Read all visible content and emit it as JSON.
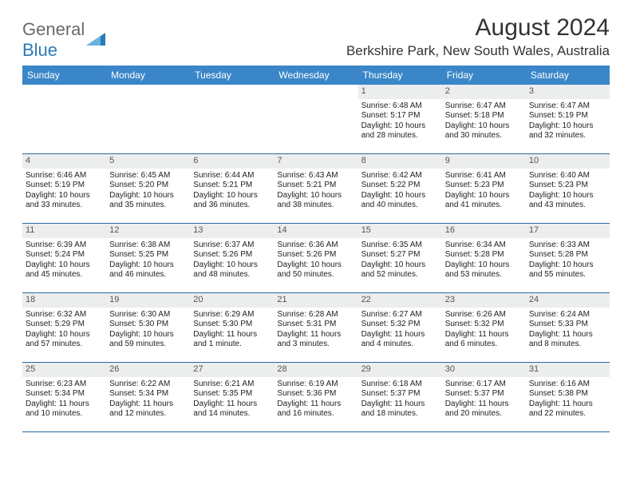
{
  "logo": {
    "text1": "General",
    "text2": "Blue"
  },
  "title": "August 2024",
  "location": "Berkshire Park, New South Wales, Australia",
  "colors": {
    "header_bg": "#3a86c8",
    "header_text": "#ffffff",
    "daynum_bg": "#eceded",
    "week_border": "#2a6aa0",
    "logo_gray": "#6a6a6a",
    "logo_blue": "#2a7ab8"
  },
  "dayNames": [
    "Sunday",
    "Monday",
    "Tuesday",
    "Wednesday",
    "Thursday",
    "Friday",
    "Saturday"
  ],
  "startOffset": 4,
  "days": [
    {
      "n": 1,
      "sr": "6:48 AM",
      "ss": "5:17 PM",
      "dl": "10 hours and 28 minutes."
    },
    {
      "n": 2,
      "sr": "6:47 AM",
      "ss": "5:18 PM",
      "dl": "10 hours and 30 minutes."
    },
    {
      "n": 3,
      "sr": "6:47 AM",
      "ss": "5:19 PM",
      "dl": "10 hours and 32 minutes."
    },
    {
      "n": 4,
      "sr": "6:46 AM",
      "ss": "5:19 PM",
      "dl": "10 hours and 33 minutes."
    },
    {
      "n": 5,
      "sr": "6:45 AM",
      "ss": "5:20 PM",
      "dl": "10 hours and 35 minutes."
    },
    {
      "n": 6,
      "sr": "6:44 AM",
      "ss": "5:21 PM",
      "dl": "10 hours and 36 minutes."
    },
    {
      "n": 7,
      "sr": "6:43 AM",
      "ss": "5:21 PM",
      "dl": "10 hours and 38 minutes."
    },
    {
      "n": 8,
      "sr": "6:42 AM",
      "ss": "5:22 PM",
      "dl": "10 hours and 40 minutes."
    },
    {
      "n": 9,
      "sr": "6:41 AM",
      "ss": "5:23 PM",
      "dl": "10 hours and 41 minutes."
    },
    {
      "n": 10,
      "sr": "6:40 AM",
      "ss": "5:23 PM",
      "dl": "10 hours and 43 minutes."
    },
    {
      "n": 11,
      "sr": "6:39 AM",
      "ss": "5:24 PM",
      "dl": "10 hours and 45 minutes."
    },
    {
      "n": 12,
      "sr": "6:38 AM",
      "ss": "5:25 PM",
      "dl": "10 hours and 46 minutes."
    },
    {
      "n": 13,
      "sr": "6:37 AM",
      "ss": "5:26 PM",
      "dl": "10 hours and 48 minutes."
    },
    {
      "n": 14,
      "sr": "6:36 AM",
      "ss": "5:26 PM",
      "dl": "10 hours and 50 minutes."
    },
    {
      "n": 15,
      "sr": "6:35 AM",
      "ss": "5:27 PM",
      "dl": "10 hours and 52 minutes."
    },
    {
      "n": 16,
      "sr": "6:34 AM",
      "ss": "5:28 PM",
      "dl": "10 hours and 53 minutes."
    },
    {
      "n": 17,
      "sr": "6:33 AM",
      "ss": "5:28 PM",
      "dl": "10 hours and 55 minutes."
    },
    {
      "n": 18,
      "sr": "6:32 AM",
      "ss": "5:29 PM",
      "dl": "10 hours and 57 minutes."
    },
    {
      "n": 19,
      "sr": "6:30 AM",
      "ss": "5:30 PM",
      "dl": "10 hours and 59 minutes."
    },
    {
      "n": 20,
      "sr": "6:29 AM",
      "ss": "5:30 PM",
      "dl": "11 hours and 1 minute."
    },
    {
      "n": 21,
      "sr": "6:28 AM",
      "ss": "5:31 PM",
      "dl": "11 hours and 3 minutes."
    },
    {
      "n": 22,
      "sr": "6:27 AM",
      "ss": "5:32 PM",
      "dl": "11 hours and 4 minutes."
    },
    {
      "n": 23,
      "sr": "6:26 AM",
      "ss": "5:32 PM",
      "dl": "11 hours and 6 minutes."
    },
    {
      "n": 24,
      "sr": "6:24 AM",
      "ss": "5:33 PM",
      "dl": "11 hours and 8 minutes."
    },
    {
      "n": 25,
      "sr": "6:23 AM",
      "ss": "5:34 PM",
      "dl": "11 hours and 10 minutes."
    },
    {
      "n": 26,
      "sr": "6:22 AM",
      "ss": "5:34 PM",
      "dl": "11 hours and 12 minutes."
    },
    {
      "n": 27,
      "sr": "6:21 AM",
      "ss": "5:35 PM",
      "dl": "11 hours and 14 minutes."
    },
    {
      "n": 28,
      "sr": "6:19 AM",
      "ss": "5:36 PM",
      "dl": "11 hours and 16 minutes."
    },
    {
      "n": 29,
      "sr": "6:18 AM",
      "ss": "5:37 PM",
      "dl": "11 hours and 18 minutes."
    },
    {
      "n": 30,
      "sr": "6:17 AM",
      "ss": "5:37 PM",
      "dl": "11 hours and 20 minutes."
    },
    {
      "n": 31,
      "sr": "6:16 AM",
      "ss": "5:38 PM",
      "dl": "11 hours and 22 minutes."
    }
  ],
  "labels": {
    "sunrise": "Sunrise: ",
    "sunset": "Sunset: ",
    "daylight": "Daylight: "
  }
}
